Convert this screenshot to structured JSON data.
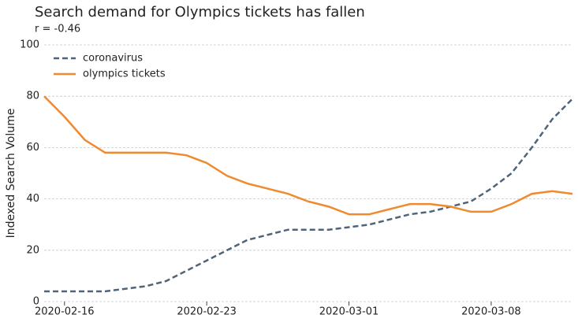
{
  "chart_data": {
    "type": "line",
    "title": "Search demand for Olympics tickets has fallen",
    "subtitle": "r = -0.46",
    "ylabel": "Indexed Search Volume",
    "x": [
      "2020-02-15",
      "2020-02-16",
      "2020-02-17",
      "2020-02-18",
      "2020-02-19",
      "2020-02-20",
      "2020-02-21",
      "2020-02-22",
      "2020-02-23",
      "2020-02-24",
      "2020-02-25",
      "2020-02-26",
      "2020-02-27",
      "2020-02-28",
      "2020-02-29",
      "2020-03-01",
      "2020-03-02",
      "2020-03-03",
      "2020-03-04",
      "2020-03-05",
      "2020-03-06",
      "2020-03-07",
      "2020-03-08",
      "2020-03-09",
      "2020-03-10",
      "2020-03-11",
      "2020-03-12"
    ],
    "series": [
      {
        "name": "coronavirus",
        "color": "#4f6479",
        "dashed": true,
        "values": [
          4,
          4,
          4,
          4,
          5,
          6,
          8,
          12,
          16,
          20,
          24,
          26,
          28,
          28,
          28,
          29,
          30,
          32,
          34,
          35,
          37,
          39,
          44,
          50,
          60,
          71,
          79
        ]
      },
      {
        "name": "olympics tickets",
        "color": "#ef8a2e",
        "dashed": false,
        "values": [
          80,
          72,
          63,
          58,
          58,
          58,
          58,
          57,
          54,
          49,
          46,
          44,
          42,
          39,
          37,
          34,
          34,
          36,
          38,
          38,
          37,
          35,
          35,
          38,
          42,
          43,
          42
        ]
      }
    ],
    "xlim": [
      "2020-02-15",
      "2020-03-12"
    ],
    "xticks": [
      "2020-02-16",
      "2020-02-23",
      "2020-03-01",
      "2020-03-08"
    ],
    "ylim": [
      0,
      100
    ],
    "yticks": [
      0,
      20,
      40,
      60,
      80,
      100
    ],
    "grid": true,
    "legend": "upper-left"
  }
}
